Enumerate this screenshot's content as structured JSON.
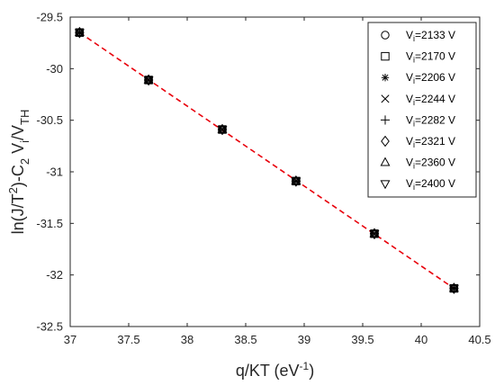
{
  "chart_data": {
    "type": "scatter",
    "xlabel": "q/KT (eV^-1)",
    "ylabel": "ln(J/T^2)-C_2 V_i/V_TH",
    "xlim": [
      37,
      40.5
    ],
    "ylim": [
      -32.5,
      -29.5
    ],
    "x_ticks": [
      "37",
      "37.5",
      "38",
      "38.5",
      "39",
      "39.5",
      "40",
      "40.5"
    ],
    "y_ticks": [
      "-29.5",
      "-30",
      "-30.5",
      "-31",
      "-31.5",
      "-32",
      "-32.5"
    ],
    "grid": false,
    "legend_position": "top-right",
    "x": [
      37.08,
      37.67,
      38.3,
      38.93,
      39.6,
      40.28
    ],
    "series": [
      {
        "name": "V_i=2133 V",
        "marker": "circle",
        "values": [
          -29.65,
          -30.11,
          -30.59,
          -31.09,
          -31.6,
          -32.13
        ]
      },
      {
        "name": "V_i=2170 V",
        "marker": "square",
        "values": [
          -29.65,
          -30.11,
          -30.59,
          -31.09,
          -31.6,
          -32.13
        ]
      },
      {
        "name": "V_i=2206 V",
        "marker": "asterisk",
        "values": [
          -29.65,
          -30.11,
          -30.59,
          -31.09,
          -31.6,
          -32.13
        ]
      },
      {
        "name": "V_i=2244 V",
        "marker": "x",
        "values": [
          -29.65,
          -30.11,
          -30.59,
          -31.09,
          -31.6,
          -32.13
        ]
      },
      {
        "name": "V_i=2282 V",
        "marker": "plus",
        "values": [
          -29.65,
          -30.11,
          -30.59,
          -31.09,
          -31.6,
          -32.13
        ]
      },
      {
        "name": "V_i=2321 V",
        "marker": "diamond",
        "values": [
          -29.65,
          -30.11,
          -30.59,
          -31.09,
          -31.6,
          -32.13
        ]
      },
      {
        "name": "V_i=2360 V",
        "marker": "triangle-up",
        "values": [
          -29.65,
          -30.11,
          -30.59,
          -31.09,
          -31.6,
          -32.13
        ]
      },
      {
        "name": "V_i=2400 V",
        "marker": "triangle-down",
        "values": [
          -29.65,
          -30.11,
          -30.59,
          -31.09,
          -31.6,
          -32.13
        ]
      }
    ],
    "fit_line": {
      "x": [
        37.08,
        40.28
      ],
      "y": [
        -29.65,
        -32.13
      ],
      "color": "#e8000b",
      "style": "dashed"
    },
    "marker_color": "#000000"
  }
}
